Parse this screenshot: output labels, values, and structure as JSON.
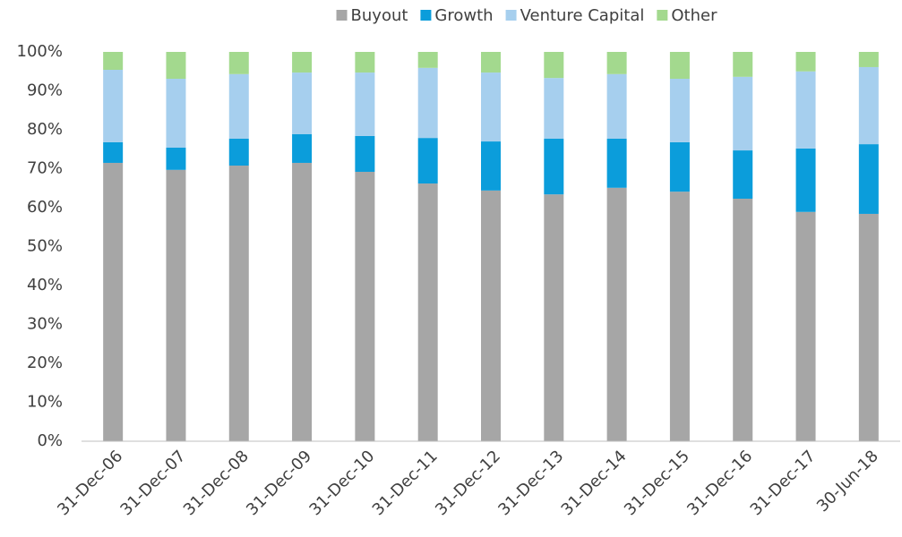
{
  "chart_data": {
    "type": "stacked_bar",
    "categories": [
      "31-Dec-06",
      "31-Dec-07",
      "31-Dec-08",
      "31-Dec-09",
      "31-Dec-10",
      "31-Dec-11",
      "31-Dec-12",
      "31-Dec-13",
      "31-Dec-14",
      "31-Dec-15",
      "31-Dec-16",
      "31-Dec-17",
      "30-Jun-18"
    ],
    "series": [
      {
        "name": "Buyout",
        "color": "#a6a6a6",
        "values": [
          71.5,
          69.7,
          70.8,
          71.5,
          69.2,
          66.2,
          64.4,
          63.4,
          65.1,
          64.1,
          62.3,
          58.9,
          58.4
        ]
      },
      {
        "name": "Growth",
        "color": "#0b9ddb",
        "values": [
          5.3,
          5.7,
          6.9,
          7.4,
          9.2,
          11.7,
          12.6,
          14.3,
          12.6,
          12.7,
          12.4,
          16.3,
          17.9
        ]
      },
      {
        "name": "Venture Capital",
        "color": "#a6cfee",
        "values": [
          18.6,
          17.7,
          16.6,
          15.8,
          16.3,
          18.0,
          17.7,
          15.6,
          16.6,
          16.3,
          18.9,
          19.8,
          19.8
        ]
      },
      {
        "name": "Other",
        "color": "#a3d98e",
        "values": [
          4.6,
          6.9,
          5.7,
          5.3,
          5.3,
          4.1,
          5.3,
          6.7,
          5.7,
          6.9,
          6.4,
          5.0,
          3.9
        ]
      }
    ],
    "ylim": [
      0,
      100
    ],
    "yticks": [
      {
        "value": 0,
        "label": "0%"
      },
      {
        "value": 10,
        "label": "10%"
      },
      {
        "value": 20,
        "label": "20%"
      },
      {
        "value": 30,
        "label": "30%"
      },
      {
        "value": 40,
        "label": "40%"
      },
      {
        "value": 50,
        "label": "50%"
      },
      {
        "value": 60,
        "label": "60%"
      },
      {
        "value": 70,
        "label": "70%"
      },
      {
        "value": 80,
        "label": "80%"
      },
      {
        "value": 90,
        "label": "90%"
      },
      {
        "value": 100,
        "label": "100%"
      }
    ],
    "grid": false,
    "legend": "top"
  }
}
